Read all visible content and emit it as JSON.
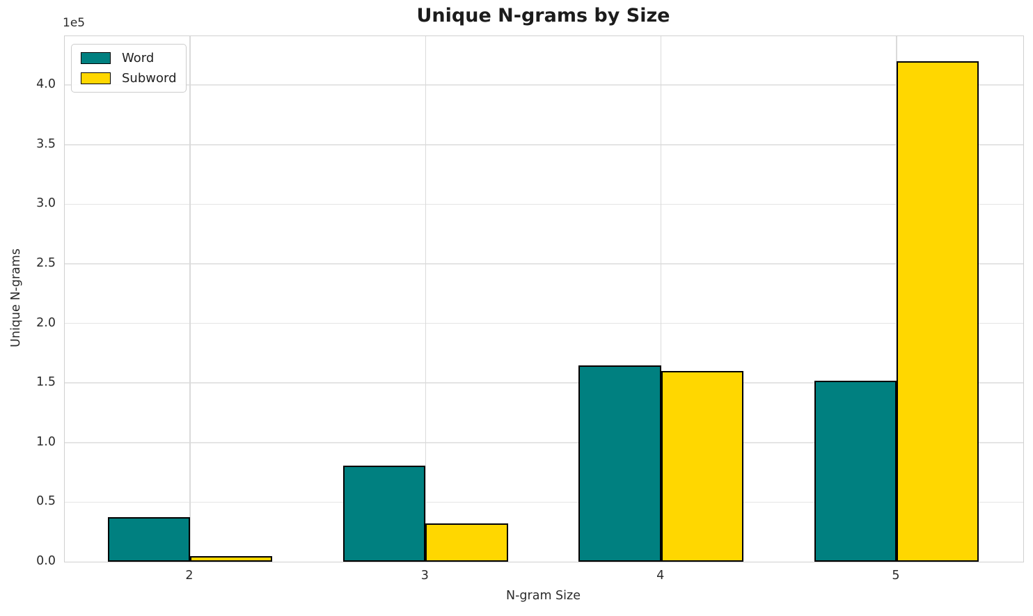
{
  "title": "Unique N-grams by Size",
  "chart_data": {
    "type": "bar",
    "title": "Unique N-grams by Size",
    "xlabel": "N-gram Size",
    "ylabel": "Unique N-grams",
    "y_offset_text": "1e5",
    "categories": [
      2,
      3,
      4,
      5
    ],
    "series": [
      {
        "name": "Word",
        "color": "#008080",
        "values": [
          37500,
          80500,
          164500,
          152000
        ]
      },
      {
        "name": "Subword",
        "color": "#FFD700",
        "values": [
          4500,
          32000,
          160000,
          420000
        ]
      }
    ],
    "bar_edge_color": "#000000",
    "bar_width_data_units": 0.35,
    "xlim": [
      1.468,
      5.538
    ],
    "ylim": [
      0,
      441000
    ],
    "yticks": [
      0,
      50000,
      100000,
      150000,
      200000,
      250000,
      300000,
      350000,
      400000
    ],
    "ytick_labels": [
      "0.0",
      "0.5",
      "1.0",
      "1.5",
      "2.0",
      "2.5",
      "3.0",
      "3.5",
      "4.0"
    ],
    "grid": true,
    "legend_position": "upper left"
  }
}
